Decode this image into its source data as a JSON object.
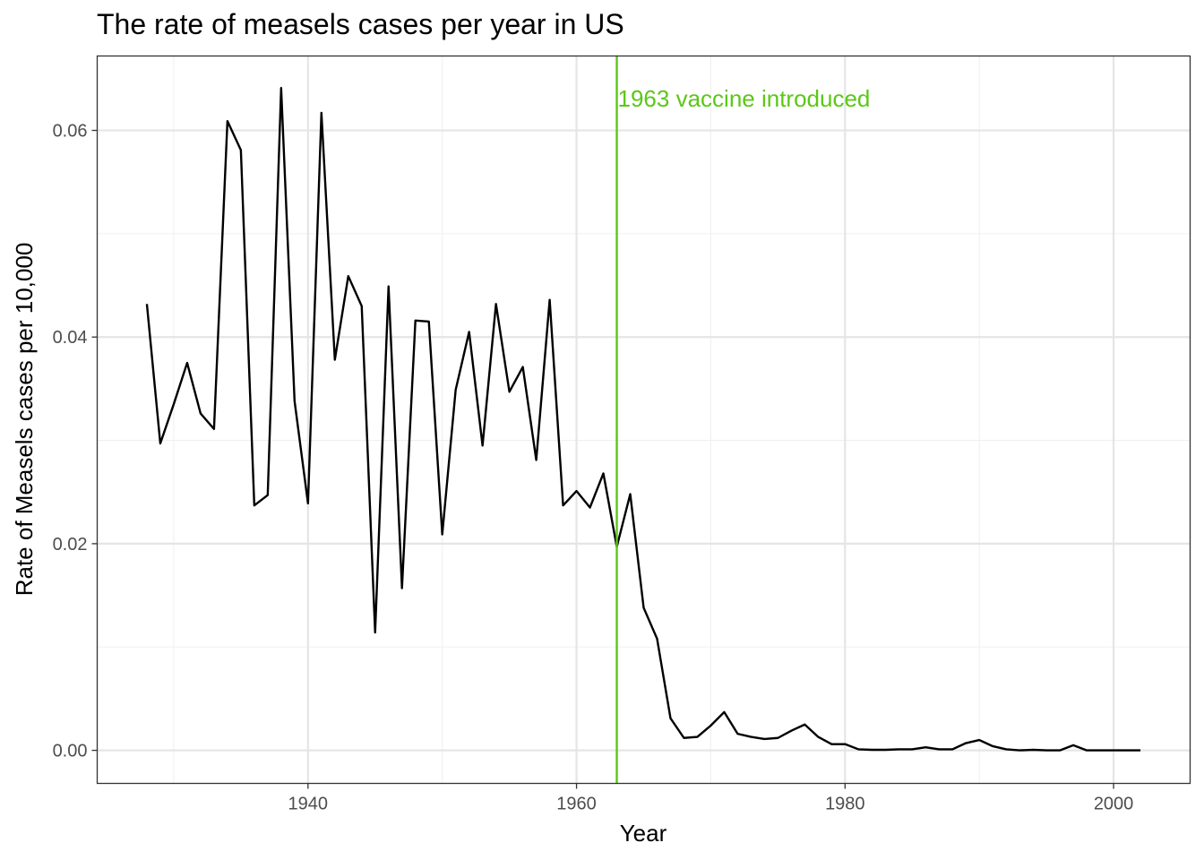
{
  "chart_data": {
    "type": "line",
    "title": "The rate of measels cases per year in US",
    "xlabel": "Year",
    "ylabel": "Rate of Measels cases per 10,000",
    "xlim": [
      1924.3,
      2005.7
    ],
    "ylim": [
      -0.0032,
      0.0672
    ],
    "x_ticks": [
      1940,
      1960,
      1980,
      2000
    ],
    "y_ticks": [
      0.0,
      0.02,
      0.04,
      0.06
    ],
    "x_tick_labels": [
      "1940",
      "1960",
      "1980",
      "2000"
    ],
    "y_tick_labels": [
      "0.00",
      "0.02",
      "0.04",
      "0.06"
    ],
    "grid": true,
    "series": [
      {
        "color": "#000000",
        "x": [
          1928,
          1929,
          1930,
          1931,
          1932,
          1933,
          1934,
          1935,
          1936,
          1937,
          1938,
          1939,
          1940,
          1941,
          1942,
          1943,
          1944,
          1945,
          1946,
          1947,
          1948,
          1949,
          1950,
          1951,
          1952,
          1953,
          1954,
          1955,
          1956,
          1957,
          1958,
          1959,
          1960,
          1961,
          1962,
          1963,
          1964,
          1965,
          1966,
          1967,
          1968,
          1969,
          1970,
          1971,
          1972,
          1973,
          1974,
          1975,
          1976,
          1977,
          1978,
          1979,
          1980,
          1981,
          1982,
          1983,
          1984,
          1985,
          1986,
          1987,
          1988,
          1989,
          1990,
          1991,
          1992,
          1993,
          1994,
          1995,
          1996,
          1997,
          1998,
          1999,
          2000,
          2001,
          2002
        ],
        "y": [
          0.0432,
          0.0297,
          0.0335,
          0.0375,
          0.0326,
          0.0311,
          0.0609,
          0.0581,
          0.0237,
          0.0247,
          0.0641,
          0.0338,
          0.0239,
          0.0617,
          0.0378,
          0.0459,
          0.043,
          0.0114,
          0.0449,
          0.0157,
          0.0416,
          0.0415,
          0.0209,
          0.0349,
          0.0405,
          0.0295,
          0.0432,
          0.0347,
          0.0371,
          0.0281,
          0.0436,
          0.0237,
          0.0251,
          0.0235,
          0.0268,
          0.0197,
          0.0248,
          0.0138,
          0.0108,
          0.0031,
          0.0012,
          0.0013,
          0.0024,
          0.0037,
          0.0016,
          0.0013,
          0.0011,
          0.0012,
          0.0019,
          0.0025,
          0.0013,
          0.0006,
          0.0006,
          0.0001,
          5e-05,
          5e-05,
          0.0001,
          0.0001,
          0.0003,
          0.0001,
          0.0001,
          0.0007,
          0.001,
          0.0004,
          0.0001,
          0.0,
          5e-05,
          0.0,
          0.0,
          0.0005,
          0.0,
          0.0,
          0.0,
          0.0,
          0.0
        ]
      }
    ],
    "vline": {
      "x": 1963,
      "label": "1963 vaccine introduced",
      "color": "#5bc718"
    }
  }
}
